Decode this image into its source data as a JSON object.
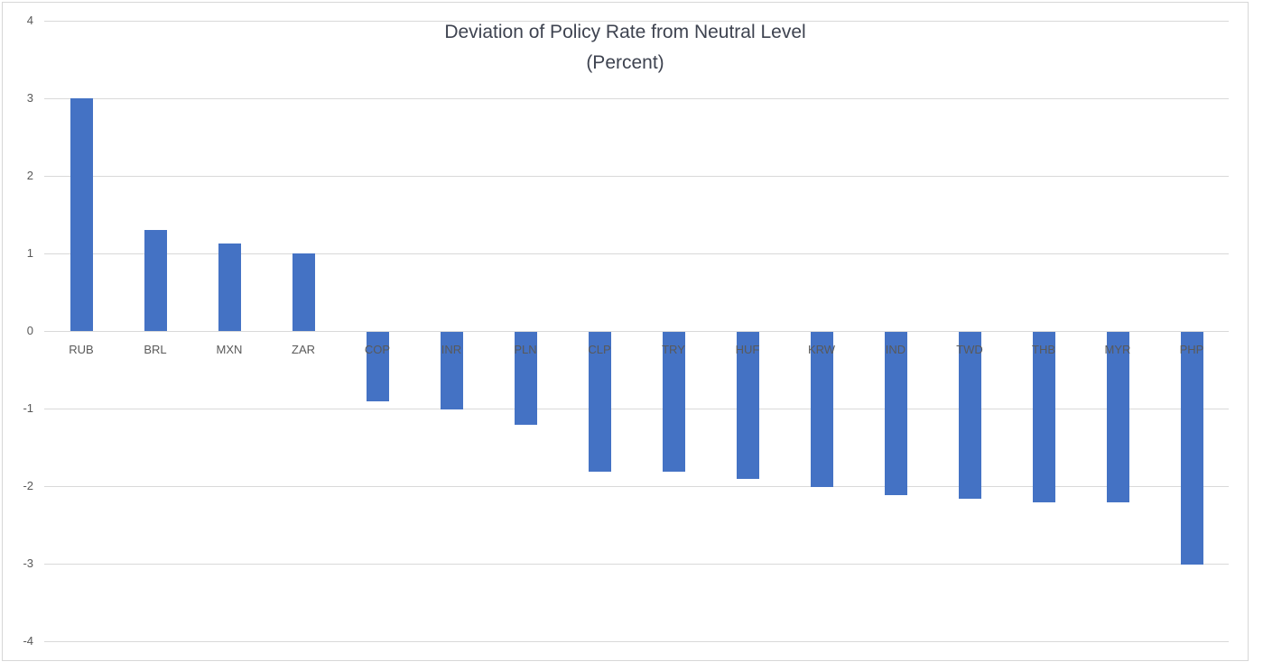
{
  "chart_data": {
    "type": "bar",
    "title": "Deviation of Policy Rate from Neutral Level",
    "subtitle": "(Percent)",
    "categories": [
      "RUB",
      "BRL",
      "MXN",
      "ZAR",
      "COP",
      "INR",
      "PLN",
      "CLP",
      "TRY",
      "HUF",
      "KRW",
      "IND",
      "TWD",
      "THB",
      "MYR",
      "PHP"
    ],
    "values": [
      3.0,
      1.3,
      1.13,
      1.0,
      -0.9,
      -1.0,
      -1.2,
      -1.8,
      -1.8,
      -1.9,
      -2.0,
      -2.1,
      -2.15,
      -2.2,
      -2.2,
      -3.0
    ],
    "ylim": [
      -4,
      4
    ],
    "yticks": [
      4,
      3,
      2,
      1,
      0,
      -1,
      -2,
      -3,
      -4
    ],
    "grid": true,
    "legend": "none",
    "bar_color": "#4472C4",
    "gridline_color": "#D9D9D9",
    "tick_label_color": "#595959",
    "title_color": "#3E4350"
  }
}
